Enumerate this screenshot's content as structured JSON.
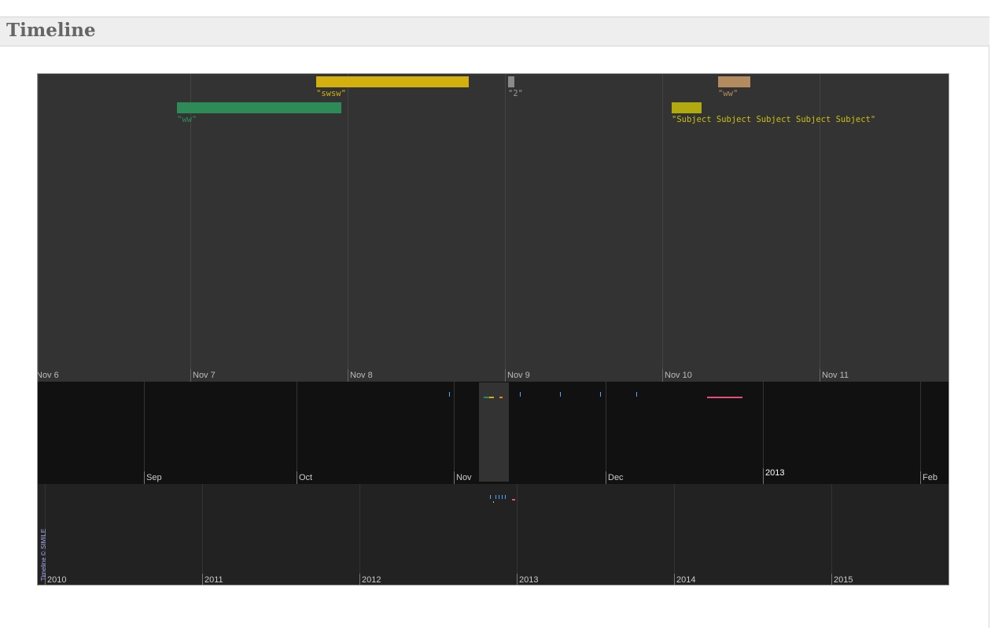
{
  "page": {
    "title": "Timeline"
  },
  "timeline": {
    "detail_band": {
      "dates": [
        "Nov 6",
        "Nov 7",
        "Nov 8",
        "Nov 9",
        "Nov 10",
        "Nov 11"
      ],
      "events": [
        {
          "label": "\"swsw\"",
          "color": "#d4b00e"
        },
        {
          "label": "\"2\"",
          "color": "#8a8a8a"
        },
        {
          "label": "\"ww\"",
          "color": "#b38b5e"
        },
        {
          "label": "\"ww\"",
          "color": "#2e8b57"
        },
        {
          "label": "\"Subject Subject Subject Subject Subject\"",
          "color": "#b0aa10"
        }
      ]
    },
    "month_band": {
      "months": [
        "Sep",
        "Oct",
        "Nov",
        "Dec",
        "2013",
        "Feb"
      ]
    },
    "year_band": {
      "years": [
        "2010",
        "2011",
        "2012",
        "2013",
        "2014",
        "2015"
      ]
    },
    "credit": "Timeline © SIMILE"
  }
}
